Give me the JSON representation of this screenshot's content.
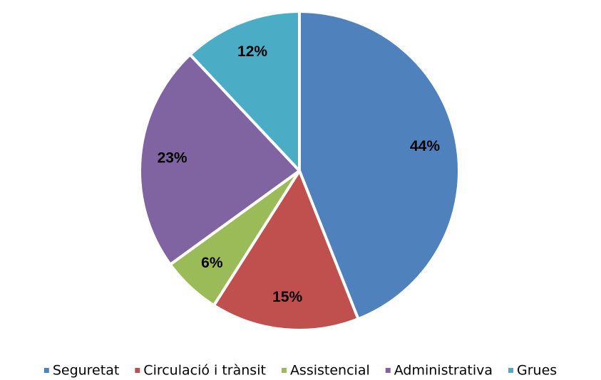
{
  "chart_data": {
    "type": "pie",
    "categories": [
      "Seguretat",
      "Circulació i trànsit",
      "Assistencial",
      "Administrativa",
      "Grues"
    ],
    "values": [
      44,
      15,
      6,
      23,
      12
    ],
    "value_labels": [
      "44%",
      "15%",
      "6%",
      "23%",
      "12%"
    ],
    "colors": [
      "#4f81bd",
      "#c0504d",
      "#9bbb59",
      "#8064a2",
      "#4bacc6"
    ],
    "legend": "bottom"
  }
}
